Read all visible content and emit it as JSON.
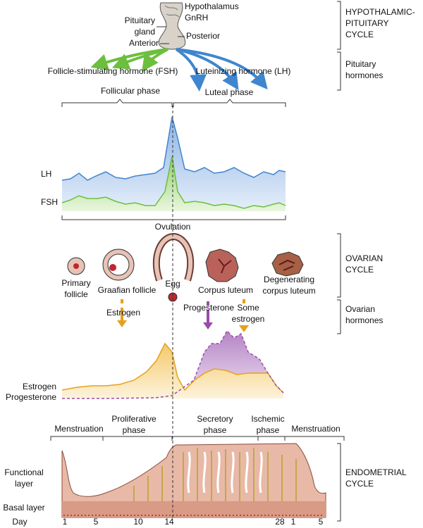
{
  "top": {
    "hypothalamus": "Hypothalamus",
    "gnrh": "GnRH",
    "pituitary_gland": [
      "Pituitary",
      "gland"
    ],
    "posterior": "Posterior",
    "anterior": "Anterior",
    "fsh_name": "Follicle-stimulating hormone (FSH)",
    "lh_name": "Luteinizing hormone (LH)",
    "follicular_phase": "Follicular phase",
    "luteal_phase": "Luteal phase"
  },
  "sections": [
    {
      "title": [
        "HYPOTHALAMIC-",
        "PITUITARY",
        "CYCLE"
      ]
    },
    {
      "title": [
        "Pituitary",
        "hormones"
      ]
    },
    {
      "title": [
        "OVARIAN",
        "CYCLE"
      ]
    },
    {
      "title": [
        "Ovarian",
        "hormones"
      ]
    },
    {
      "title": [
        "ENDOMETRIAL",
        "CYCLE"
      ]
    }
  ],
  "pituitary_chart": {
    "lh": "LH",
    "fsh": "FSH"
  },
  "ovary": {
    "ovulation": "Ovulation",
    "stages": [
      {
        "label": [
          "Primary",
          "follicle"
        ]
      },
      {
        "label": [
          "Graafian follicle"
        ]
      },
      {
        "label": [
          "Egg"
        ]
      },
      {
        "label": [
          "Corpus luteum"
        ]
      },
      {
        "label": [
          "Degenerating",
          "corpus luteum"
        ]
      }
    ],
    "hormones": [
      {
        "label": [
          "Estrogen"
        ]
      },
      {
        "label": [
          "Progesterone"
        ]
      },
      {
        "label": [
          "Some",
          "estrogen"
        ]
      }
    ]
  },
  "ovarian_chart": {
    "estrogen": "Estrogen",
    "progesterone": "Progesterone"
  },
  "endometrium": {
    "phases": [
      [
        "Menstruation"
      ],
      [
        "Proliferative",
        "phase"
      ],
      [
        "Secretory",
        "phase"
      ],
      [
        "Ischemic",
        "phase"
      ],
      [
        "Menstruation"
      ]
    ],
    "layers": [
      [
        "Functional",
        "layer"
      ],
      [
        "Basal layer"
      ]
    ],
    "day_label": "Day",
    "days": [
      1,
      5,
      10,
      14,
      28,
      1,
      5
    ]
  }
}
